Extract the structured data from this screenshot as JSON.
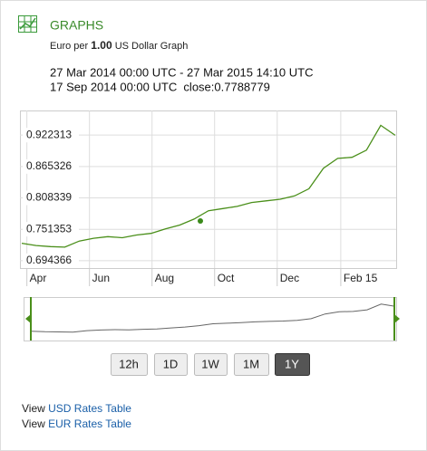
{
  "header": {
    "title": "GRAPHS",
    "subtitle_prefix": "Euro per",
    "amount": "1.00",
    "subtitle_suffix": "US Dollar Graph",
    "range": "27 Mar 2014 00:00 UTC - 27 Mar 2015 14:10 UTC",
    "hover": "17 Sep 2014 00:00 UTC  close:0.7788779"
  },
  "chart_data": {
    "type": "line",
    "x": [
      0,
      14,
      28,
      42,
      56,
      70,
      84,
      98,
      112,
      126,
      140,
      154,
      168,
      182,
      196,
      210,
      224,
      238,
      252,
      266,
      280,
      294,
      308,
      322,
      336,
      350,
      364
    ],
    "series": [
      {
        "color": "#4a8f1a",
        "values": [
          0.726,
          0.722,
          0.72,
          0.719,
          0.73,
          0.735,
          0.738,
          0.736,
          0.741,
          0.744,
          0.752,
          0.759,
          0.77,
          0.785,
          0.789,
          0.793,
          0.8,
          0.803,
          0.806,
          0.812,
          0.825,
          0.862,
          0.88,
          0.882,
          0.895,
          0.94,
          0.922
        ]
      }
    ],
    "xlim": [
      0,
      365
    ],
    "xticks": [
      {
        "value": 5,
        "label": "Apr"
      },
      {
        "value": 66,
        "label": "Jun"
      },
      {
        "value": 127,
        "label": "Aug"
      },
      {
        "value": 188,
        "label": "Oct"
      },
      {
        "value": 249,
        "label": "Dec"
      },
      {
        "value": 311,
        "label": "Feb 15"
      }
    ],
    "ylim": [
      0.681,
      0.967
    ],
    "yticks": [
      0.694366,
      0.751353,
      0.808339,
      0.865326,
      0.922313
    ],
    "grid": true
  },
  "buttons": [
    "12h",
    "1D",
    "1W",
    "1M",
    "1Y"
  ],
  "selected": "1Y",
  "links": [
    {
      "prefix": "View",
      "link": "USD Rates Table"
    },
    {
      "prefix": "View",
      "link": "EUR Rates Table"
    }
  ]
}
